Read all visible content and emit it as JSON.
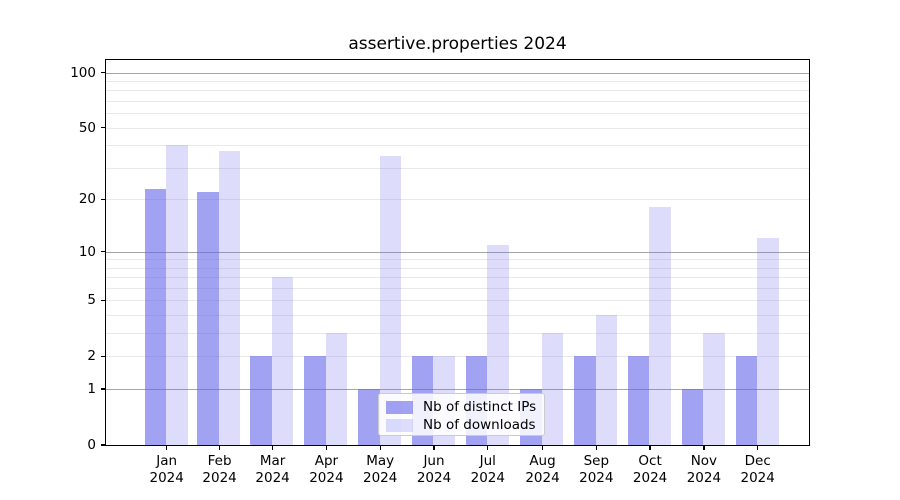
{
  "title": "assertive.properties 2024",
  "chart_data": {
    "type": "bar",
    "title": "assertive.properties 2024",
    "categories": [
      "Jan",
      "Feb",
      "Mar",
      "Apr",
      "May",
      "Jun",
      "Jul",
      "Aug",
      "Sep",
      "Oct",
      "Nov",
      "Dec"
    ],
    "year_label": "2024",
    "series": [
      {
        "name": "Nb of distinct IPs",
        "color": "rgba(100,100,235,0.6)",
        "solid_hex": "#a3a3ee",
        "values": [
          23,
          22,
          2,
          2,
          1,
          2,
          2,
          1,
          2,
          2,
          1,
          2
        ]
      },
      {
        "name": "Nb of downloads",
        "color": "rgba(100,100,235,0.22)",
        "solid_hex": "#dcdcf8",
        "values": [
          40,
          37,
          7,
          3,
          35,
          2,
          11,
          3,
          4,
          18,
          3,
          12
        ]
      }
    ],
    "xlabel": "",
    "ylabel": "",
    "yscale": "log1p",
    "ylim": [
      0,
      116
    ],
    "ytick_values": [
      0,
      1,
      2,
      5,
      10,
      20,
      50,
      100
    ],
    "ytick_labels": [
      "0",
      "1",
      "2",
      "5",
      "10",
      "20",
      "50",
      "100"
    ],
    "major_grid_values": [
      1,
      10,
      100
    ],
    "minor_grid_values": [
      2,
      3,
      4,
      5,
      6,
      7,
      8,
      9,
      20,
      30,
      40,
      50,
      60,
      70,
      80,
      90
    ],
    "grid": true,
    "legend_position": "inside lower-center",
    "spine_color": "#000000",
    "major_grid_color": "#a6a6a6",
    "minor_grid_color": "#e9e9e9"
  },
  "legend": {
    "items": [
      {
        "label": "Nb of distinct IPs"
      },
      {
        "label": "Nb of downloads"
      }
    ]
  }
}
